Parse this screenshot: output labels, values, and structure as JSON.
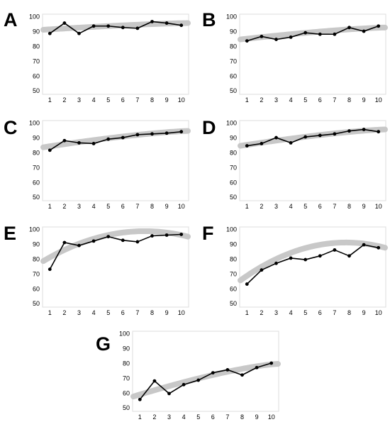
{
  "colors": {
    "line": "#000000",
    "marker": "#000000",
    "trend_band": "#c8c8c8",
    "axis": "#dddddd",
    "background": "#ffffff"
  },
  "chart_data": [
    {
      "panel": "A",
      "type": "line",
      "x": [
        1,
        2,
        3,
        4,
        5,
        6,
        7,
        8,
        9,
        10
      ],
      "series": [
        {
          "values": [
            89,
            96,
            89,
            94,
            94,
            93,
            92.5,
            97,
            96,
            94.5
          ]
        }
      ],
      "trend": {
        "start": 91.5,
        "end": 96
      },
      "ylim": [
        48,
        102
      ],
      "yticks": [
        50,
        60,
        70,
        80,
        90,
        100
      ],
      "xticks": [
        1,
        2,
        3,
        4,
        5,
        6,
        7,
        8,
        9,
        10
      ],
      "grid": false,
      "legend": "none"
    },
    {
      "panel": "B",
      "type": "line",
      "x": [
        1,
        2,
        3,
        4,
        5,
        6,
        7,
        8,
        9,
        10
      ],
      "series": [
        {
          "values": [
            84,
            87,
            85,
            86.5,
            89.5,
            88.5,
            88.5,
            93,
            90.5,
            94
          ]
        }
      ],
      "trend": {
        "start": 85,
        "end": 93
      },
      "ylim": [
        48,
        102
      ],
      "yticks": [
        50,
        60,
        70,
        80,
        90,
        100
      ],
      "xticks": [
        1,
        2,
        3,
        4,
        5,
        6,
        7,
        8,
        9,
        10
      ],
      "grid": false,
      "legend": "none"
    },
    {
      "panel": "C",
      "type": "line",
      "x": [
        1,
        2,
        3,
        4,
        5,
        6,
        7,
        8,
        9,
        10
      ],
      "series": [
        {
          "values": [
            82,
            88.5,
            87,
            86.5,
            89.5,
            90.5,
            92.5,
            93,
            93.5,
            94.5
          ]
        }
      ],
      "trend": {
        "start": 84,
        "end": 95
      },
      "ylim": [
        48,
        102
      ],
      "yticks": [
        50,
        60,
        70,
        80,
        90,
        100
      ],
      "xticks": [
        1,
        2,
        3,
        4,
        5,
        6,
        7,
        8,
        9,
        10
      ],
      "grid": false,
      "legend": "none"
    },
    {
      "panel": "D",
      "type": "line",
      "x": [
        1,
        2,
        3,
        4,
        5,
        6,
        7,
        8,
        9,
        10
      ],
      "series": [
        {
          "values": [
            85,
            86.5,
            90.5,
            87,
            91,
            92,
            93,
            95,
            96,
            94.5
          ]
        }
      ],
      "trend": {
        "start": 85,
        "end": 96
      },
      "ylim": [
        48,
        102
      ],
      "yticks": [
        50,
        60,
        70,
        80,
        90,
        100
      ],
      "xticks": [
        1,
        2,
        3,
        4,
        5,
        6,
        7,
        8,
        9,
        10
      ],
      "grid": false,
      "legend": "none"
    },
    {
      "panel": "E",
      "type": "line",
      "x": [
        1,
        2,
        3,
        4,
        5,
        6,
        7,
        8,
        9,
        10
      ],
      "series": [
        {
          "values": [
            73.5,
            91.5,
            89.5,
            92.5,
            95.5,
            93,
            92,
            96,
            96.5,
            97
          ]
        }
      ],
      "trend": {
        "start": 79,
        "end": 95.5,
        "peak": 97.5
      },
      "ylim": [
        48,
        102
      ],
      "yticks": [
        50,
        60,
        70,
        80,
        90,
        100
      ],
      "xticks": [
        1,
        2,
        3,
        4,
        5,
        6,
        7,
        8,
        9,
        10
      ],
      "grid": false,
      "legend": "none"
    },
    {
      "panel": "F",
      "type": "line",
      "x": [
        1,
        2,
        3,
        4,
        5,
        6,
        7,
        8,
        9,
        10
      ],
      "series": [
        {
          "values": [
            63.5,
            73,
            77.5,
            81,
            80,
            82.5,
            86.5,
            82.5,
            90,
            88
          ]
        }
      ],
      "trend": {
        "start": 66,
        "end": 88,
        "peak": 89
      },
      "ylim": [
        48,
        102
      ],
      "yticks": [
        50,
        60,
        70,
        80,
        90,
        100
      ],
      "xticks": [
        1,
        2,
        3,
        4,
        5,
        6,
        7,
        8,
        9,
        10
      ],
      "grid": false,
      "legend": "none"
    },
    {
      "panel": "G",
      "type": "line",
      "x": [
        1,
        2,
        3,
        4,
        5,
        6,
        7,
        8,
        9,
        10
      ],
      "series": [
        {
          "values": [
            56,
            68.5,
            60,
            66,
            69,
            74,
            76,
            72.5,
            77.5,
            80.5
          ]
        }
      ],
      "trend": {
        "start": 58,
        "end": 80
      },
      "ylim": [
        48,
        102
      ],
      "yticks": [
        50,
        60,
        70,
        80,
        90,
        100
      ],
      "xticks": [
        1,
        2,
        3,
        4,
        5,
        6,
        7,
        8,
        9,
        10
      ],
      "grid": false,
      "legend": "none"
    }
  ]
}
